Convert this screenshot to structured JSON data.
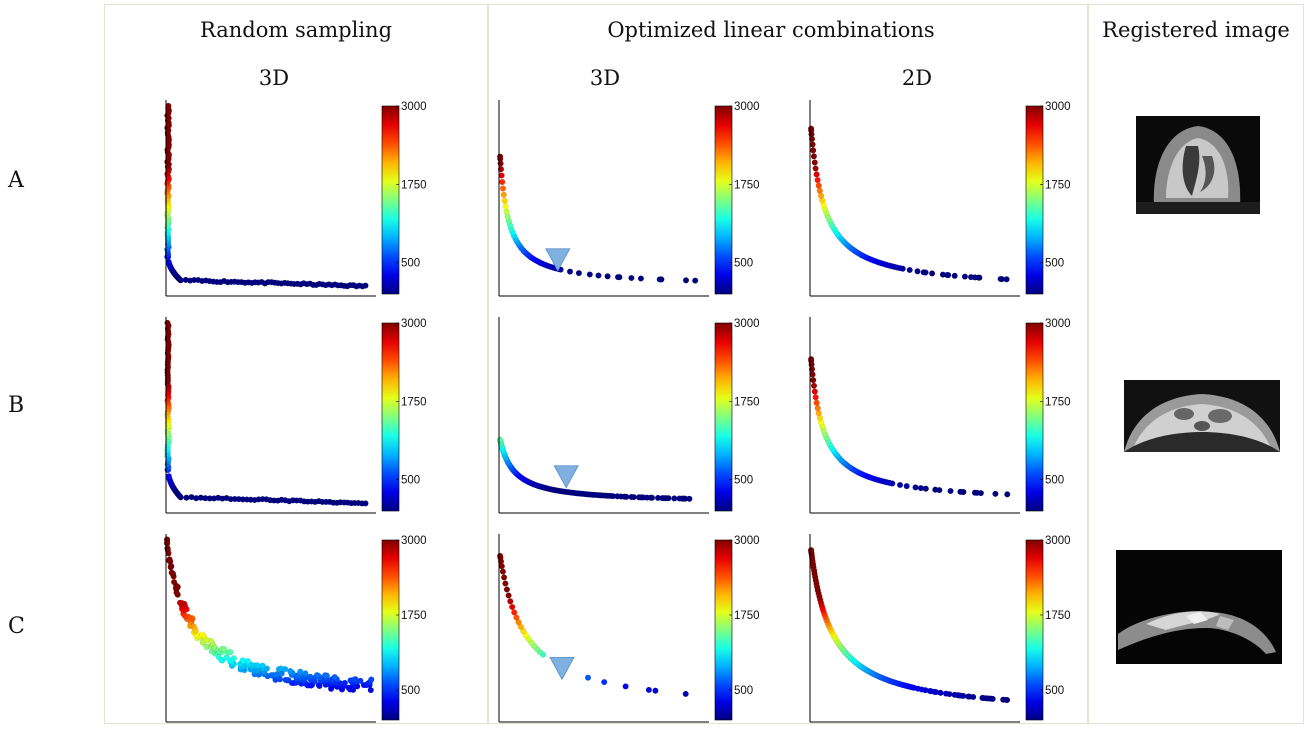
{
  "headers": {
    "random_sampling": "Random sampling",
    "optimized": "Optimized linear combinations",
    "registered": "Registered image",
    "sub_3d_random": "3D",
    "sub_3d_opt": "3D",
    "sub_2d_opt": "2D"
  },
  "rows": [
    "A",
    "B",
    "C"
  ],
  "colorbar": {
    "ticks": [
      3000,
      1750,
      500
    ],
    "range": [
      0,
      3000
    ],
    "colormap": "jet"
  },
  "colors": {
    "frame": "#e4e2d2",
    "marker": "#7fb0e0"
  },
  "chart_data": [
    {
      "id": "A-random-3d",
      "type": "scatter",
      "row": "A",
      "column": "Random sampling 3D",
      "curve": {
        "kind": "lshape",
        "knee": [
          0.02,
          0.2
        ],
        "tail_end": [
          0.95,
          0.05
        ],
        "top": 0.97,
        "count": 140,
        "jitter": 0.008
      }
    },
    {
      "id": "A-opt-3d",
      "type": "scatter",
      "row": "A",
      "column": "Optimized linear combinations 3D",
      "marker": [
        0.28,
        0.18
      ],
      "curve": {
        "kind": "hyper",
        "top": 0.8,
        "a": 0.028,
        "xmax": 0.97,
        "ymin": 0.05,
        "count": 55,
        "sparse_after": 0.3
      }
    },
    {
      "id": "A-opt-2d",
      "type": "scatter",
      "row": "A",
      "column": "Optimized linear combinations 2D",
      "curve": {
        "kind": "hyper",
        "top": 0.92,
        "a": 0.055,
        "xmax": 0.98,
        "ymin": 0.03,
        "count": 70,
        "sparse_after": 0.45
      }
    },
    {
      "id": "B-random-3d",
      "type": "scatter",
      "row": "B",
      "column": "Random sampling 3D",
      "curve": {
        "kind": "lshape",
        "knee": [
          0.02,
          0.22
        ],
        "tail_end": [
          0.95,
          0.05
        ],
        "top": 0.97,
        "count": 120,
        "jitter": 0.006
      }
    },
    {
      "id": "B-opt-3d",
      "type": "scatter",
      "row": "B",
      "column": "Optimized linear combinations 3D",
      "marker": [
        0.32,
        0.18
      ],
      "curve": {
        "kind": "hyper",
        "top": 0.4,
        "a": 0.022,
        "xmax": 0.97,
        "ymin": 0.05,
        "count": 95,
        "sparse_after": 0.55
      }
    },
    {
      "id": "B-opt-2d",
      "type": "scatter",
      "row": "B",
      "column": "Optimized linear combinations 2D",
      "curve": {
        "kind": "hyper",
        "top": 0.85,
        "a": 0.045,
        "xmax": 0.97,
        "ymin": 0.05,
        "count": 65,
        "sparse_after": 0.4
      }
    },
    {
      "id": "C-random-3d",
      "type": "scatter",
      "row": "C",
      "column": "Random sampling 3D",
      "curve": {
        "kind": "cloud",
        "top": 0.97,
        "a": 0.1,
        "xmax": 0.98,
        "ymin": 0.1,
        "count": 240,
        "spread": 0.07
      }
    },
    {
      "id": "C-opt-3d",
      "type": "scatter",
      "row": "C",
      "column": "Optimized linear combinations 3D",
      "marker": [
        0.3,
        0.28
      ],
      "curve": {
        "kind": "hyper",
        "top": 0.92,
        "a": 0.1,
        "xmax": 0.97,
        "ymin": 0.05,
        "count": 30,
        "sparse_after": 0.22
      }
    },
    {
      "id": "C-opt-2d",
      "type": "scatter",
      "row": "C",
      "column": "Optimized linear combinations 2D",
      "curve": {
        "kind": "hyper",
        "top": 0.96,
        "a": 0.09,
        "xmax": 0.98,
        "ymin": 0.03,
        "count": 110,
        "sparse_after": 0.5
      }
    }
  ]
}
